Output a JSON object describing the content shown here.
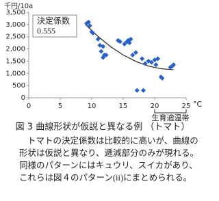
{
  "chart_data": {
    "type": "scatter",
    "y_label": "千円/10a",
    "x_unit": "°C",
    "annotation": {
      "label": "決定係数",
      "value": "0.555"
    },
    "band": {
      "label": "生育適温帯",
      "range": [
        20,
        25
      ]
    },
    "xlim": [
      0,
      25
    ],
    "xticks": [
      0,
      5,
      10,
      15,
      20,
      25
    ],
    "ylim": [
      0,
      3500
    ],
    "yticks": [
      0,
      500,
      {
        "value": 1000,
        "label": "1,000"
      },
      {
        "value": 1500,
        "label": "1,500"
      },
      {
        "value": 2000,
        "label": "2,000"
      },
      {
        "value": 2500,
        "label": "2,500"
      },
      {
        "value": 3000,
        "label": "3,000"
      },
      {
        "value": 3500,
        "label": "3,500"
      }
    ],
    "grid": false,
    "series": [
      {
        "color": "#2a62c4",
        "x": [
          9.2,
          9.5,
          9.7,
          10,
          10.2,
          11,
          11.3,
          11.8,
          11.5,
          12,
          11.8,
          12.3,
          14.2,
          14.5,
          15.2,
          15.6,
          15.8,
          16.2,
          16,
          16.5,
          17,
          17.2,
          18.2,
          18,
          18.5,
          19,
          19.5,
          20,
          20.2,
          20.5,
          21,
          21.2,
          22.5,
          22.8,
          23
        ],
        "values": [
          3050,
          3100,
          2950,
          2700,
          2650,
          2400,
          2150,
          2100,
          1900,
          1750,
          1650,
          1750,
          2350,
          2300,
          2200,
          2300,
          2350,
          2400,
          2250,
          1750,
          1850,
          300,
          300,
          1600,
          1400,
          1500,
          1450,
          1550,
          1350,
          1600,
          850,
          800,
          1250,
          1300,
          1350
        ]
      }
    ],
    "trend": {
      "color": "#222222",
      "x": [
        9,
        11,
        13,
        15,
        17,
        19,
        21,
        23
      ],
      "values": [
        3000,
        2510,
        2094,
        1754,
        1490,
        1301,
        1188,
        1150
      ]
    }
  },
  "caption": "図 3  曲線形状が仮説と異なる例 （トマト）",
  "body": [
    "トマトの決定係数は比較的に高いが、曲線の",
    "形状は仮説と異なり、逓減部分のみが現れる。",
    "同様のパターンにはキュウリ、スイカがあり、",
    "これらは図４のパターン(ii)にまとめられる。"
  ]
}
